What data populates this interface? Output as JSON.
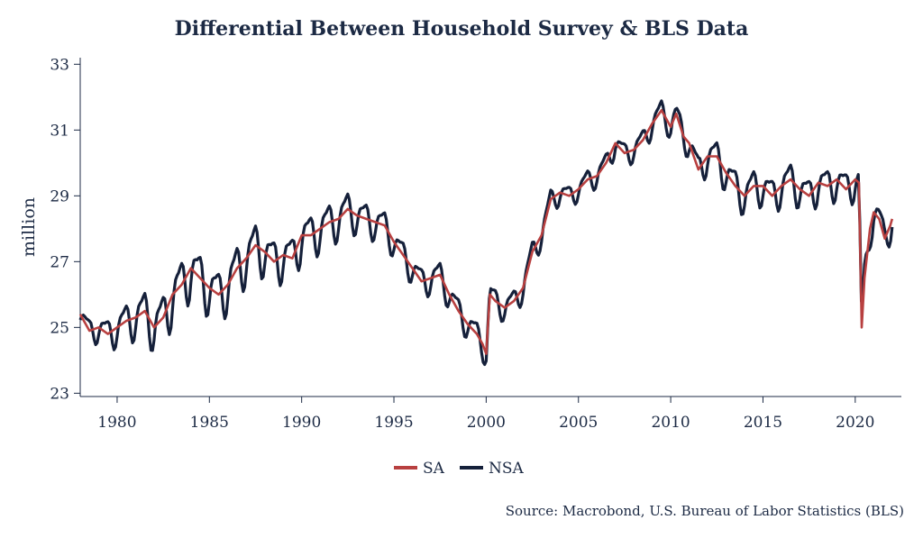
{
  "chart_data": {
    "type": "line",
    "title": "Differential Between Household Survey & BLS Data",
    "ylabel": "million",
    "xlabel": "",
    "xlim": [
      1978.0,
      2022.5
    ],
    "ylim": [
      22.9,
      33.2
    ],
    "x_ticks": [
      "1980",
      "1985",
      "1990",
      "1995",
      "2000",
      "2005",
      "2010",
      "2015",
      "2020"
    ],
    "y_ticks": [
      "23",
      "25",
      "27",
      "29",
      "31",
      "33"
    ],
    "grid": false,
    "legend": "bottom-center",
    "source": "Source: Macrobond, U.S. Bureau of Labor Statistics (BLS)",
    "series": [
      {
        "name": "SA",
        "color": "#b84040",
        "points": [
          [
            1978.0,
            25.4
          ],
          [
            1978.5,
            24.9
          ],
          [
            1979.0,
            25.0
          ],
          [
            1979.5,
            24.8
          ],
          [
            1980.0,
            25.0
          ],
          [
            1980.5,
            25.2
          ],
          [
            1981.0,
            25.3
          ],
          [
            1981.5,
            25.5
          ],
          [
            1982.0,
            25.0
          ],
          [
            1982.5,
            25.3
          ],
          [
            1983.0,
            26.0
          ],
          [
            1983.5,
            26.3
          ],
          [
            1984.0,
            26.8
          ],
          [
            1984.5,
            26.5
          ],
          [
            1985.0,
            26.2
          ],
          [
            1985.5,
            26.0
          ],
          [
            1986.0,
            26.3
          ],
          [
            1986.5,
            26.8
          ],
          [
            1987.0,
            27.1
          ],
          [
            1987.5,
            27.5
          ],
          [
            1988.0,
            27.3
          ],
          [
            1988.5,
            27.0
          ],
          [
            1989.0,
            27.2
          ],
          [
            1989.5,
            27.1
          ],
          [
            1990.0,
            27.8
          ],
          [
            1990.5,
            27.8
          ],
          [
            1991.0,
            28.0
          ],
          [
            1991.5,
            28.2
          ],
          [
            1992.0,
            28.3
          ],
          [
            1992.5,
            28.6
          ],
          [
            1993.0,
            28.4
          ],
          [
            1993.5,
            28.3
          ],
          [
            1994.0,
            28.2
          ],
          [
            1994.5,
            28.1
          ],
          [
            1995.0,
            27.6
          ],
          [
            1995.5,
            27.2
          ],
          [
            1996.0,
            26.8
          ],
          [
            1996.5,
            26.4
          ],
          [
            1997.0,
            26.5
          ],
          [
            1997.5,
            26.6
          ],
          [
            1998.0,
            26.0
          ],
          [
            1998.5,
            25.5
          ],
          [
            1999.0,
            25.1
          ],
          [
            1999.5,
            24.8
          ],
          [
            1999.8,
            24.5
          ],
          [
            2000.0,
            24.2
          ],
          [
            2000.2,
            26.0
          ],
          [
            2000.5,
            25.8
          ],
          [
            2001.0,
            25.6
          ],
          [
            2001.5,
            25.8
          ],
          [
            2002.0,
            26.2
          ],
          [
            2002.5,
            27.3
          ],
          [
            2003.0,
            27.8
          ],
          [
            2003.5,
            28.9
          ],
          [
            2004.0,
            29.1
          ],
          [
            2004.5,
            29.0
          ],
          [
            2005.0,
            29.2
          ],
          [
            2005.5,
            29.5
          ],
          [
            2006.0,
            29.6
          ],
          [
            2006.5,
            30.0
          ],
          [
            2007.0,
            30.6
          ],
          [
            2007.5,
            30.3
          ],
          [
            2008.0,
            30.4
          ],
          [
            2008.5,
            30.7
          ],
          [
            2009.0,
            31.2
          ],
          [
            2009.5,
            31.6
          ],
          [
            2010.0,
            31.1
          ],
          [
            2010.3,
            31.5
          ],
          [
            2010.7,
            30.8
          ],
          [
            2011.0,
            30.6
          ],
          [
            2011.5,
            29.8
          ],
          [
            2012.0,
            30.2
          ],
          [
            2012.5,
            30.2
          ],
          [
            2013.0,
            29.7
          ],
          [
            2013.5,
            29.3
          ],
          [
            2014.0,
            29.0
          ],
          [
            2014.5,
            29.3
          ],
          [
            2015.0,
            29.3
          ],
          [
            2015.5,
            29.0
          ],
          [
            2016.0,
            29.3
          ],
          [
            2016.5,
            29.5
          ],
          [
            2017.0,
            29.2
          ],
          [
            2017.5,
            29.0
          ],
          [
            2018.0,
            29.4
          ],
          [
            2018.5,
            29.3
          ],
          [
            2019.0,
            29.5
          ],
          [
            2019.5,
            29.2
          ],
          [
            2020.0,
            29.5
          ],
          [
            2020.2,
            29.4
          ],
          [
            2020.35,
            25.0
          ],
          [
            2020.5,
            26.5
          ],
          [
            2020.8,
            28.0
          ],
          [
            2021.0,
            28.5
          ],
          [
            2021.3,
            28.3
          ],
          [
            2021.6,
            27.7
          ],
          [
            2021.9,
            28.1
          ],
          [
            2022.0,
            28.3
          ]
        ]
      },
      {
        "name": "NSA",
        "color": "#15203a",
        "amplitude": [
          [
            1978.0,
            0.35
          ],
          [
            1983.0,
            0.9
          ],
          [
            1990.0,
            0.75
          ],
          [
            1995.0,
            0.5
          ],
          [
            2000.0,
            0.45
          ],
          [
            2005.0,
            0.35
          ],
          [
            2010.0,
            0.4
          ],
          [
            2013.0,
            0.6
          ],
          [
            2020.0,
            0.6
          ],
          [
            2022.0,
            0.5
          ]
        ]
      }
    ]
  }
}
